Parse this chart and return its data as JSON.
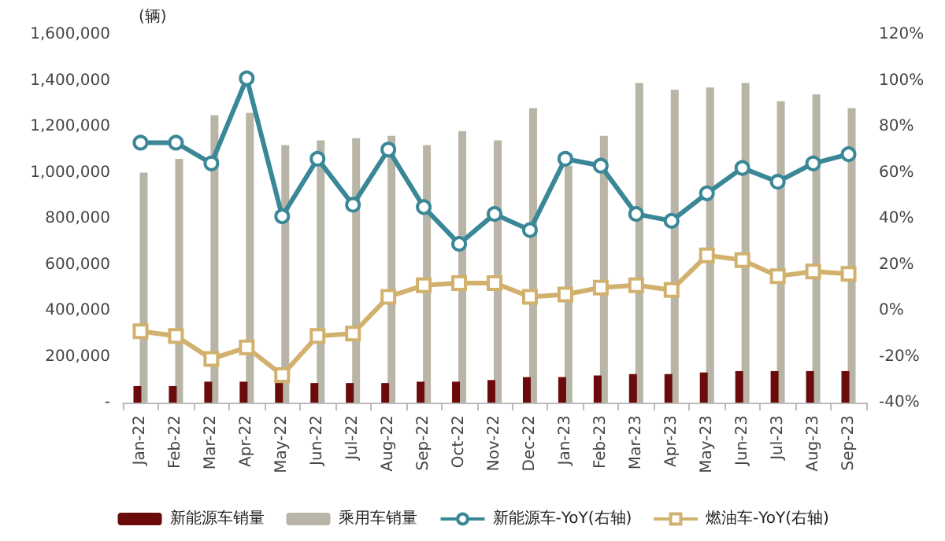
{
  "chart_data": {
    "type": "bar",
    "ylabel": "(辆)",
    "categories": [
      "Jan-22",
      "Feb-22",
      "Mar-22",
      "Apr-22",
      "May-22",
      "Jun-22",
      "Jul-22",
      "Aug-22",
      "Sep-22",
      "Oct-22",
      "Nov-22",
      "Dec-22",
      "Jan-23",
      "Feb-23",
      "Mar-23",
      "Apr-23",
      "May-23",
      "Jun-23",
      "Jul-23",
      "Aug-23",
      "Sep-23"
    ],
    "series": [
      {
        "name": "新能源车销量",
        "color": "#6b0a0a",
        "values": [
          72000,
          72000,
          91000,
          91000,
          85000,
          85000,
          85000,
          85000,
          91000,
          91000,
          98000,
          111000,
          111000,
          118000,
          124000,
          124000,
          131000,
          137000,
          137000,
          137000,
          137000
        ]
      },
      {
        "name": "乘用车销量",
        "color": "#b8b5a6",
        "values": [
          1000000,
          1060000,
          1250000,
          1260000,
          1120000,
          1140000,
          1150000,
          1160000,
          1120000,
          1180000,
          1140000,
          1280000,
          1030000,
          1160000,
          1390000,
          1360000,
          1370000,
          1390000,
          1310000,
          1340000,
          1280000
        ]
      },
      {
        "name": "新能源车-YoY(右轴)",
        "type": "line",
        "axis": "y2",
        "marker": "circle",
        "color": "#3a8797",
        "values": [
          73,
          73,
          64,
          101,
          41,
          66,
          46,
          70,
          45,
          29,
          42,
          35,
          66,
          63,
          42,
          39,
          51,
          62,
          56,
          64,
          68
        ]
      },
      {
        "name": "燃油车-YoY(右轴)",
        "type": "line",
        "axis": "y2",
        "marker": "square",
        "color": "#d2b16e",
        "values": [
          -9,
          -11,
          -21,
          -16,
          -28,
          -11,
          -10,
          6,
          11,
          12,
          12,
          6,
          7,
          10,
          11,
          9,
          24,
          22,
          15,
          17,
          16
        ]
      }
    ],
    "ylim": [
      0,
      1600000
    ],
    "yticks": [
      {
        "value": 0,
        "label": "-"
      },
      {
        "value": 200000,
        "label": "200,000"
      },
      {
        "value": 400000,
        "label": "400,000"
      },
      {
        "value": 600000,
        "label": "600,000"
      },
      {
        "value": 800000,
        "label": "800,000"
      },
      {
        "value": 1000000,
        "label": "1,000,000"
      },
      {
        "value": 1200000,
        "label": "1,200,000"
      },
      {
        "value": 1400000,
        "label": "1,400,000"
      },
      {
        "value": 1600000,
        "label": "1,600,000"
      }
    ],
    "y2lim": [
      -40,
      120
    ],
    "y2ticks": [
      {
        "value": -40,
        "label": "-40%"
      },
      {
        "value": -20,
        "label": "-20%"
      },
      {
        "value": 0,
        "label": "0%"
      },
      {
        "value": 20,
        "label": "20%"
      },
      {
        "value": 40,
        "label": "40%"
      },
      {
        "value": 60,
        "label": "60%"
      },
      {
        "value": 80,
        "label": "80%"
      },
      {
        "value": 100,
        "label": "100%"
      },
      {
        "value": 120,
        "label": "120%"
      }
    ],
    "grid": false,
    "legend": "bottom"
  }
}
